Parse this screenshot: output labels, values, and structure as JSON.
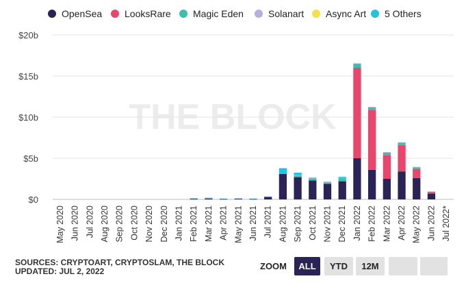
{
  "legend": [
    {
      "name": "OpenSea",
      "color": "#2a2358"
    },
    {
      "name": "LooksRare",
      "color": "#e8466a"
    },
    {
      "name": "Magic Eden",
      "color": "#3bbfae"
    },
    {
      "name": "Solanart",
      "color": "#b6aee0"
    },
    {
      "name": "Async Art",
      "color": "#f5e04a"
    },
    {
      "name": "5 Others",
      "color": "#23c4e3"
    }
  ],
  "watermark": "THE BLOCK",
  "footer": {
    "sources": "SOURCES: CRYPTOART, CRYPTOSLAM, THE BLOCK",
    "updated": "UPDATED: JUL 2, 2022"
  },
  "zoom": {
    "label": "ZOOM",
    "buttons": [
      {
        "label": "ALL",
        "active": true
      },
      {
        "label": "YTD",
        "active": false
      },
      {
        "label": "12M",
        "active": false
      },
      {
        "label": "",
        "active": false
      },
      {
        "label": "",
        "active": false
      }
    ]
  },
  "chart_data": {
    "type": "bar",
    "stacked": true,
    "title": "",
    "xlabel": "",
    "ylabel": "",
    "ylim": [
      0,
      20
    ],
    "y_ticks": [
      0,
      5,
      10,
      15,
      20
    ],
    "y_tick_labels": [
      "$0",
      "$5b",
      "$10b",
      "$15b",
      "$20b"
    ],
    "grid": true,
    "legend_position": "top",
    "categories": [
      "May 2020",
      "Jun 2020",
      "Jul 2020",
      "Aug 2020",
      "Sep 2020",
      "Oct 2020",
      "Nov 2020",
      "Dec 2020",
      "Jan 2021",
      "Feb 2021",
      "Mar 2021",
      "Apr 2021",
      "May 2021",
      "Jun 2021",
      "Jul 2021",
      "Aug 2021",
      "Sep 2021",
      "Oct 2021",
      "Nov 2021",
      "Dec 2021",
      "Jan 2022",
      "Feb 2022",
      "Mar 2022",
      "Apr 2022",
      "May 2022",
      "Jun 2022",
      "Jul 2022*"
    ],
    "series": [
      {
        "name": "OpenSea",
        "color": "#2a2358",
        "values": [
          0,
          0,
          0,
          0,
          0,
          0,
          0,
          0,
          0,
          0.05,
          0.1,
          0.05,
          0.08,
          0.05,
          0.3,
          3.1,
          2.7,
          2.3,
          1.9,
          2.2,
          5.0,
          3.6,
          2.5,
          3.4,
          2.6,
          0.7,
          0
        ]
      },
      {
        "name": "LooksRare",
        "color": "#e8466a",
        "values": [
          0,
          0,
          0,
          0,
          0,
          0,
          0,
          0,
          0,
          0,
          0,
          0,
          0,
          0,
          0,
          0,
          0,
          0,
          0,
          0,
          11.0,
          7.3,
          2.9,
          3.2,
          1.1,
          0.2,
          0
        ]
      },
      {
        "name": "Magic Eden",
        "color": "#3bbfae",
        "values": [
          0,
          0,
          0,
          0,
          0,
          0,
          0,
          0,
          0,
          0,
          0,
          0,
          0,
          0,
          0,
          0,
          0.2,
          0.2,
          0.1,
          0.4,
          0.5,
          0.3,
          0.3,
          0.3,
          0.2,
          0.05,
          0
        ]
      },
      {
        "name": "Solanart",
        "color": "#b6aee0",
        "values": [
          0,
          0,
          0,
          0,
          0,
          0,
          0,
          0,
          0,
          0,
          0,
          0,
          0,
          0,
          0,
          0,
          0.05,
          0.05,
          0.05,
          0.05,
          0.05,
          0.05,
          0.05,
          0.05,
          0.05,
          0.02,
          0
        ]
      },
      {
        "name": "Async Art",
        "color": "#f5e04a",
        "values": [
          0,
          0,
          0,
          0,
          0,
          0,
          0,
          0,
          0,
          0,
          0,
          0,
          0,
          0,
          0,
          0,
          0,
          0,
          0,
          0,
          0,
          0,
          0,
          0,
          0,
          0,
          0
        ]
      },
      {
        "name": "5 Others",
        "color": "#23c4e3",
        "values": [
          0,
          0,
          0,
          0,
          0,
          0,
          0,
          0,
          0,
          0.1,
          0.1,
          0.05,
          0.05,
          0.05,
          0.05,
          0.7,
          0.3,
          0.1,
          0.1,
          0.1,
          0,
          0,
          0,
          0,
          0,
          0,
          0
        ]
      }
    ]
  }
}
